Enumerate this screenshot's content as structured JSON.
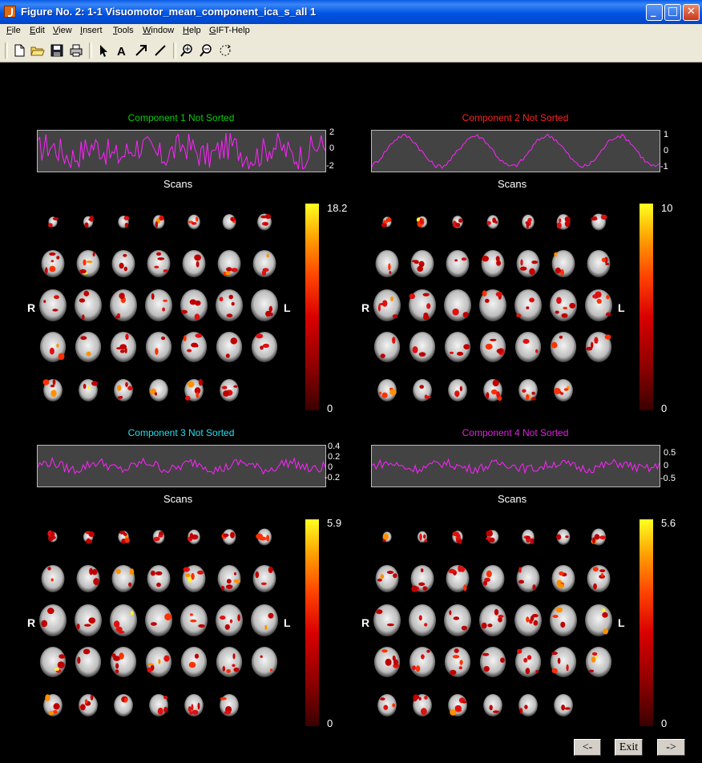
{
  "window": {
    "title": "Figure No. 2: 1-1 Visuomotor_mean_component_ica_s_all 1",
    "min_glyph": "_",
    "max_glyph": "□",
    "close_glyph": "✕"
  },
  "menu": [
    "File",
    "Edit",
    "View",
    "Insert",
    "Tools",
    "Window",
    "Help",
    "GIFT-Help"
  ],
  "toolbar_icons": [
    "new-file-icon",
    "open-folder-icon",
    "save-icon",
    "print-icon",
    "pointer-icon",
    "text-icon",
    "arrow-icon",
    "line-icon",
    "zoom-in-icon",
    "zoom-out-icon",
    "rotate-icon"
  ],
  "components": [
    {
      "title": "Component 1 Not Sorted",
      "title_color": "#00d000",
      "yticks": [
        "2",
        "0",
        "-2"
      ],
      "xlabel": "Scans",
      "cbar_max": "18.2",
      "cbar_min": "0",
      "left_label": "R",
      "right_label": "L"
    },
    {
      "title": "Component 2 Not Sorted",
      "title_color": "#ff2020",
      "yticks": [
        "1",
        "0",
        "-1"
      ],
      "xlabel": "Scans",
      "cbar_max": "10",
      "cbar_min": "0",
      "left_label": "R",
      "right_label": "L"
    },
    {
      "title": "Component 3 Not Sorted",
      "title_color": "#20e0f0",
      "yticks": [
        "0.4",
        "0.2",
        "0",
        "-0.2"
      ],
      "xlabel": "Scans",
      "cbar_max": "5.9",
      "cbar_min": "0",
      "left_label": "R",
      "right_label": "L"
    },
    {
      "title": "Component 4 Not Sorted",
      "title_color": "#e020e0",
      "yticks": [
        "0.5",
        "0",
        "-0.5"
      ],
      "xlabel": "Scans",
      "cbar_max": "5.6",
      "cbar_min": "0",
      "left_label": "R",
      "right_label": "L"
    }
  ],
  "nav": {
    "prev_label": "<-",
    "exit_label": "Exit",
    "next_label": "->"
  }
}
